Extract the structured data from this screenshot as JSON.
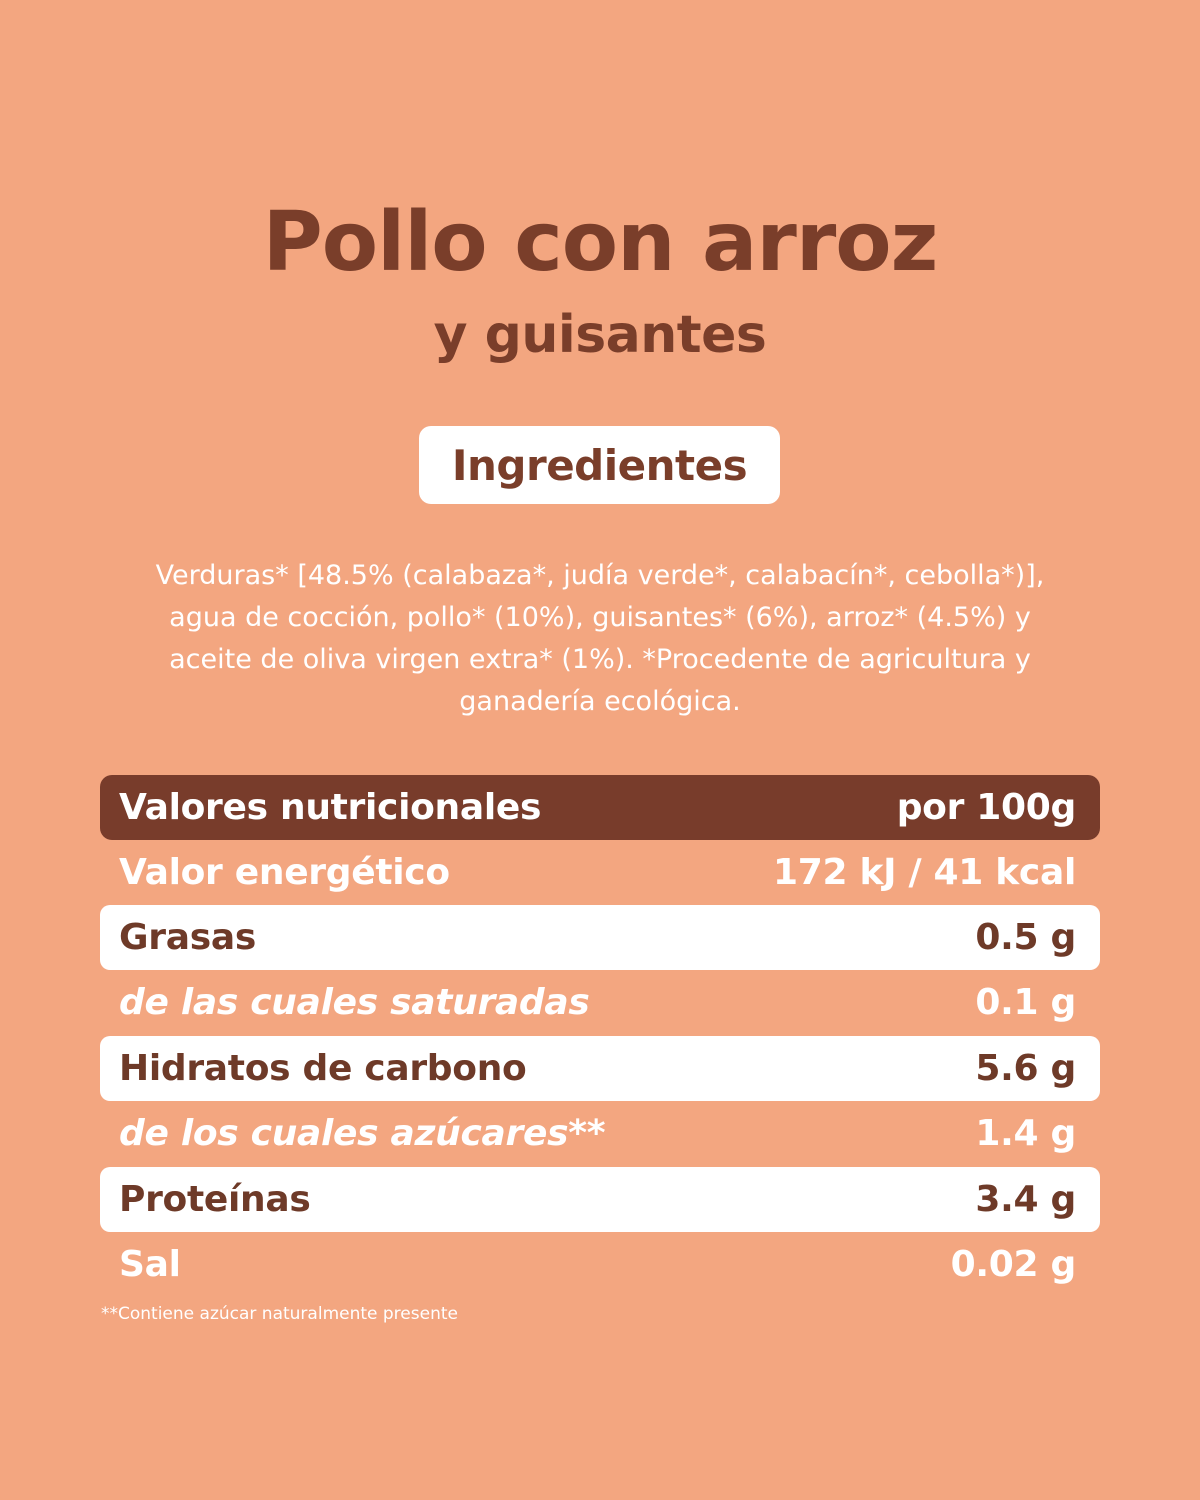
{
  "title": {
    "main": "Pollo con arroz",
    "sub": "y guisantes"
  },
  "ingredients_badge": "Ingredientes",
  "ingredients_lines": [
    "Verduras* [48.5% (calabaza*, judía verde*, calabacín*, cebolla*)],",
    "agua de cocción, pollo* (10%), guisantes* (6%), arroz* (4.5%) y",
    "aceite de oliva virgen extra* (1%). *Procedente de agricultura y",
    "ganadería ecológica."
  ],
  "nutrition": {
    "header": {
      "label": "Valores nutricionales",
      "value": "por 100g"
    },
    "rows": [
      {
        "label": "Valor energético",
        "value": "172 kJ / 41 kcal"
      },
      {
        "label": "Grasas",
        "value": "0.5 g"
      },
      {
        "label": "de las cuales saturadas",
        "value": "0.1 g"
      },
      {
        "label": "Hidratos de carbono",
        "value": "5.6 g"
      },
      {
        "label": "de los cuales azúcares**",
        "value": "1.4 g"
      },
      {
        "label": "Proteínas",
        "value": "3.4 g"
      },
      {
        "label": "Sal",
        "value": "0.02 g"
      }
    ]
  },
  "footnote": "**Contiene azúcar naturalmente presente",
  "colors": {
    "background": "#f3a680",
    "brown": "#783c2b",
    "white": "#ffffff"
  }
}
